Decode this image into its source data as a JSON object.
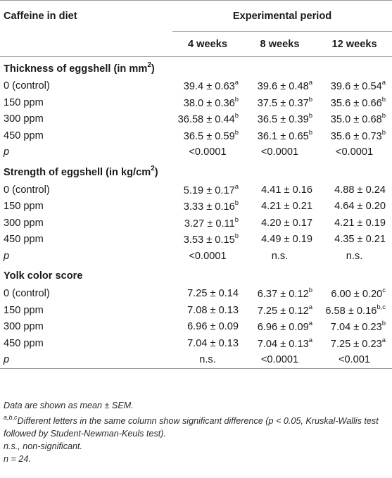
{
  "header": {
    "row_label": "Caffeine in diet",
    "period_title": "Experimental period",
    "weeks": [
      "4 weeks",
      "8 weeks",
      "12 weeks"
    ]
  },
  "sections": [
    {
      "title_main": "Thickness of eggshell (in mm",
      "title_sup": "2",
      "title_end": ")",
      "rows": [
        {
          "label": "0 (control)",
          "cells": [
            {
              "v": "39.4 ± 0.63",
              "s": "a"
            },
            {
              "v": "39.6 ± 0.48",
              "s": "a"
            },
            {
              "v": "39.6 ± 0.54",
              "s": "a"
            }
          ]
        },
        {
          "label": "150 ppm",
          "cells": [
            {
              "v": "38.0 ± 0.36",
              "s": "b"
            },
            {
              "v": "37.5 ± 0.37",
              "s": "b"
            },
            {
              "v": "35.6 ± 0.66",
              "s": "b"
            }
          ]
        },
        {
          "label": "300 ppm",
          "cells": [
            {
              "v": "36.58 ± 0.44",
              "s": "b"
            },
            {
              "v": "36.5 ± 0.39",
              "s": "b"
            },
            {
              "v": "35.0 ± 0.68",
              "s": "b"
            }
          ]
        },
        {
          "label": "450 ppm",
          "cells": [
            {
              "v": "36.5 ± 0.59",
              "s": "b"
            },
            {
              "v": "36.1 ± 0.65",
              "s": "b"
            },
            {
              "v": "35.6 ± 0.73",
              "s": "b"
            }
          ]
        }
      ],
      "p_label": "p",
      "p_values": [
        "<0.0001",
        "<0.0001",
        "<0.0001"
      ]
    },
    {
      "title_main": "Strength of eggshell (in kg/cm",
      "title_sup": "2",
      "title_end": ")",
      "rows": [
        {
          "label": "0 (control)",
          "cells": [
            {
              "v": "5.19 ± 0.17",
              "s": "a"
            },
            {
              "v": "4.41 ± 0.16",
              "s": ""
            },
            {
              "v": "4.88 ± 0.24",
              "s": ""
            }
          ]
        },
        {
          "label": "150 ppm",
          "cells": [
            {
              "v": "3.33 ± 0.16",
              "s": "b"
            },
            {
              "v": "4.21 ± 0.21",
              "s": ""
            },
            {
              "v": "4.64 ± 0.20",
              "s": ""
            }
          ]
        },
        {
          "label": "300 ppm",
          "cells": [
            {
              "v": "3.27 ± 0.11",
              "s": "b"
            },
            {
              "v": "4.20 ± 0.17",
              "s": ""
            },
            {
              "v": "4.21 ± 0.19",
              "s": ""
            }
          ]
        },
        {
          "label": "450 ppm",
          "cells": [
            {
              "v": "3.53 ± 0.15",
              "s": "b"
            },
            {
              "v": "4.49 ± 0.19",
              "s": ""
            },
            {
              "v": "4.35 ± 0.21",
              "s": ""
            }
          ]
        }
      ],
      "p_label": "p",
      "p_values": [
        "<0.0001",
        "n.s.",
        "n.s."
      ]
    },
    {
      "title_main": "Yolk color score",
      "title_sup": "",
      "title_end": "",
      "rows": [
        {
          "label": "0 (control)",
          "cells": [
            {
              "v": "7.25 ± 0.14",
              "s": ""
            },
            {
              "v": "6.37 ± 0.12",
              "s": "b"
            },
            {
              "v": "6.00 ± 0.20",
              "s": "c"
            }
          ]
        },
        {
          "label": "150 ppm",
          "cells": [
            {
              "v": "7.08 ± 0.13",
              "s": ""
            },
            {
              "v": "7.25 ± 0.12",
              "s": "a"
            },
            {
              "v": "6.58 ± 0.16",
              "s": "b,c"
            }
          ]
        },
        {
          "label": "300 ppm",
          "cells": [
            {
              "v": "6.96 ± 0.09",
              "s": ""
            },
            {
              "v": "6.96 ± 0.09",
              "s": "a"
            },
            {
              "v": "7.04 ± 0.23",
              "s": "b"
            }
          ]
        },
        {
          "label": "450 ppm",
          "cells": [
            {
              "v": "7.04 ± 0.13",
              "s": ""
            },
            {
              "v": "7.04 ± 0.13",
              "s": "a"
            },
            {
              "v": "7.25 ± 0.23",
              "s": "a"
            }
          ]
        }
      ],
      "p_label": "p",
      "p_values": [
        "n.s.",
        "<0.0001",
        "<0.001"
      ]
    }
  ],
  "notes": {
    "data_note": "Data are shown as mean ± SEM.",
    "letters_sup": "a,b,c",
    "letters_note": "Different letters in the same column show significant difference (p < 0.05, Kruskal-Wallis test followed by Student-Newman-Keuls test).",
    "ns_note": "n.s., non-significant.",
    "n_note": "n = 24."
  }
}
